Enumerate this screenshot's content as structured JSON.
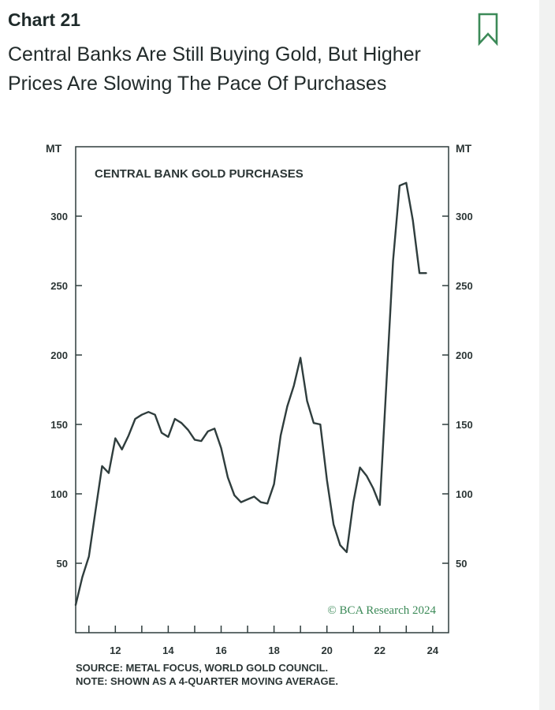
{
  "header": {
    "chart_label": "Chart 21",
    "title": "Central Banks Are Still Buying Gold, But Higher Prices Are Slowing The Pace Of Purchases",
    "bookmark_icon": "bookmark-icon"
  },
  "chart_data": {
    "type": "line",
    "title": "CENTRAL BANK GOLD PURCHASES",
    "ylabel_left": "MT",
    "ylabel_right": "MT",
    "ylim": [
      0,
      350
    ],
    "xlim": [
      10.5,
      24.6
    ],
    "y_ticks": [
      50,
      100,
      150,
      200,
      250,
      300
    ],
    "x_ticks": [
      12,
      14,
      16,
      18,
      20,
      22,
      24
    ],
    "x_tick_labels": [
      "12",
      "14",
      "16",
      "18",
      "20",
      "22",
      "24"
    ],
    "y_tick_labels": [
      "50",
      "100",
      "150",
      "200",
      "250",
      "300"
    ],
    "series": [
      {
        "name": "Central bank gold purchases (4-quarter moving average)",
        "color": "#2f3d3d",
        "x": [
          10.5,
          10.75,
          11.0,
          11.25,
          11.5,
          11.75,
          12.0,
          12.25,
          12.5,
          12.75,
          13.0,
          13.25,
          13.5,
          13.75,
          14.0,
          14.25,
          14.5,
          14.75,
          15.0,
          15.25,
          15.5,
          15.75,
          16.0,
          16.25,
          16.5,
          16.75,
          17.0,
          17.25,
          17.5,
          17.75,
          18.0,
          18.25,
          18.5,
          18.75,
          19.0,
          19.25,
          19.5,
          19.75,
          20.0,
          20.25,
          20.5,
          20.75,
          21.0,
          21.25,
          21.5,
          21.75,
          22.0,
          22.25,
          22.5,
          22.75,
          23.0,
          23.25,
          23.5,
          23.75
        ],
        "values": [
          20,
          40,
          55,
          88,
          120,
          115,
          140,
          132,
          142,
          154,
          157,
          159,
          157,
          144,
          141,
          154,
          151,
          146,
          139,
          138,
          145,
          147,
          133,
          112,
          99,
          94,
          96,
          98,
          94,
          93,
          107,
          142,
          163,
          178,
          198,
          167,
          151,
          150,
          110,
          78,
          63,
          58,
          94,
          119,
          113,
          104,
          92,
          180,
          268,
          322,
          324,
          297,
          259,
          259
        ]
      }
    ],
    "credit": "© BCA Research 2024"
  },
  "footer": {
    "source": "SOURCE: METAL FOCUS, WORLD GOLD COUNCIL.",
    "note": "NOTE: SHOWN AS A 4-QUARTER MOVING AVERAGE."
  }
}
